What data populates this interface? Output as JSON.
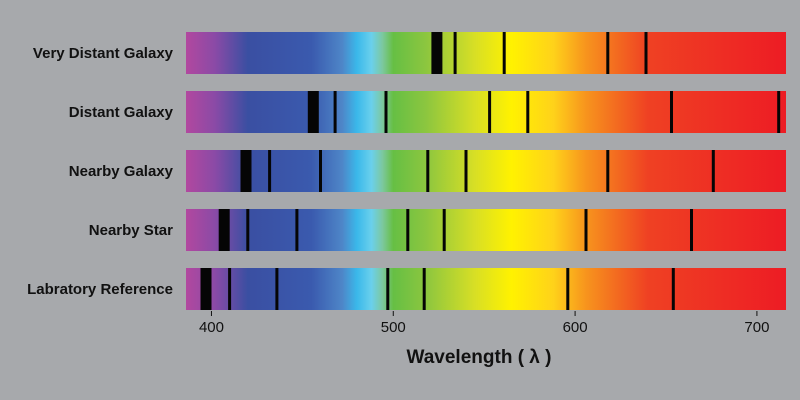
{
  "axis": {
    "title": "Wavelength ( λ )",
    "range": [
      386,
      716
    ],
    "ticks": [
      {
        "value": 400,
        "label": "400"
      },
      {
        "value": 500,
        "label": "500"
      },
      {
        "value": 600,
        "label": "600"
      },
      {
        "value": 700,
        "label": "700"
      }
    ]
  },
  "spectrum_colors": [
    {
      "value": 386,
      "color": "#b2489f"
    },
    {
      "value": 402,
      "color": "#8a4aa6"
    },
    {
      "value": 420,
      "color": "#3a4fa2"
    },
    {
      "value": 455,
      "color": "#3a5aae"
    },
    {
      "value": 472,
      "color": "#4e86c8"
    },
    {
      "value": 480,
      "color": "#3ab8ea"
    },
    {
      "value": 488,
      "color": "#6ad0ec"
    },
    {
      "value": 494,
      "color": "#7cc8a0"
    },
    {
      "value": 500,
      "color": "#66bf44"
    },
    {
      "value": 518,
      "color": "#8cc63f"
    },
    {
      "value": 545,
      "color": "#d8df25"
    },
    {
      "value": 565,
      "color": "#fff200"
    },
    {
      "value": 588,
      "color": "#ffd21a"
    },
    {
      "value": 606,
      "color": "#f7941d"
    },
    {
      "value": 640,
      "color": "#ef4123"
    },
    {
      "value": 716,
      "color": "#ed1c24"
    }
  ],
  "spectra": [
    {
      "label": "Very Distant Galaxy",
      "lines": [
        {
          "value": 524,
          "weight": "heavy"
        },
        {
          "value": 534,
          "weight": "thin"
        },
        {
          "value": 561,
          "weight": "thin"
        },
        {
          "value": 618,
          "weight": "thin"
        },
        {
          "value": 639,
          "weight": "thin"
        }
      ]
    },
    {
      "label": "Distant Galaxy",
      "lines": [
        {
          "value": 456,
          "weight": "heavy"
        },
        {
          "value": 468,
          "weight": "thin"
        },
        {
          "value": 496,
          "weight": "thin"
        },
        {
          "value": 553,
          "weight": "thin"
        },
        {
          "value": 574,
          "weight": "thin"
        },
        {
          "value": 653,
          "weight": "thin"
        },
        {
          "value": 712,
          "weight": "thin"
        }
      ]
    },
    {
      "label": "Nearby Galaxy",
      "lines": [
        {
          "value": 419,
          "weight": "heavy"
        },
        {
          "value": 432,
          "weight": "thin"
        },
        {
          "value": 460,
          "weight": "thin"
        },
        {
          "value": 519,
          "weight": "thin"
        },
        {
          "value": 540,
          "weight": "thin"
        },
        {
          "value": 618,
          "weight": "thin"
        },
        {
          "value": 676,
          "weight": "thin"
        }
      ]
    },
    {
      "label": "Nearby Star",
      "lines": [
        {
          "value": 407,
          "weight": "heavy"
        },
        {
          "value": 420,
          "weight": "thin"
        },
        {
          "value": 447,
          "weight": "thin"
        },
        {
          "value": 508,
          "weight": "thin"
        },
        {
          "value": 528,
          "weight": "thin"
        },
        {
          "value": 606,
          "weight": "thin"
        },
        {
          "value": 664,
          "weight": "thin"
        }
      ]
    },
    {
      "label": "Labratory Reference",
      "lines": [
        {
          "value": 397,
          "weight": "heavy"
        },
        {
          "value": 410,
          "weight": "thin"
        },
        {
          "value": 436,
          "weight": "thin"
        },
        {
          "value": 497,
          "weight": "thin"
        },
        {
          "value": 517,
          "weight": "thin"
        },
        {
          "value": 596,
          "weight": "thin"
        },
        {
          "value": 654,
          "weight": "thin"
        }
      ]
    }
  ]
}
